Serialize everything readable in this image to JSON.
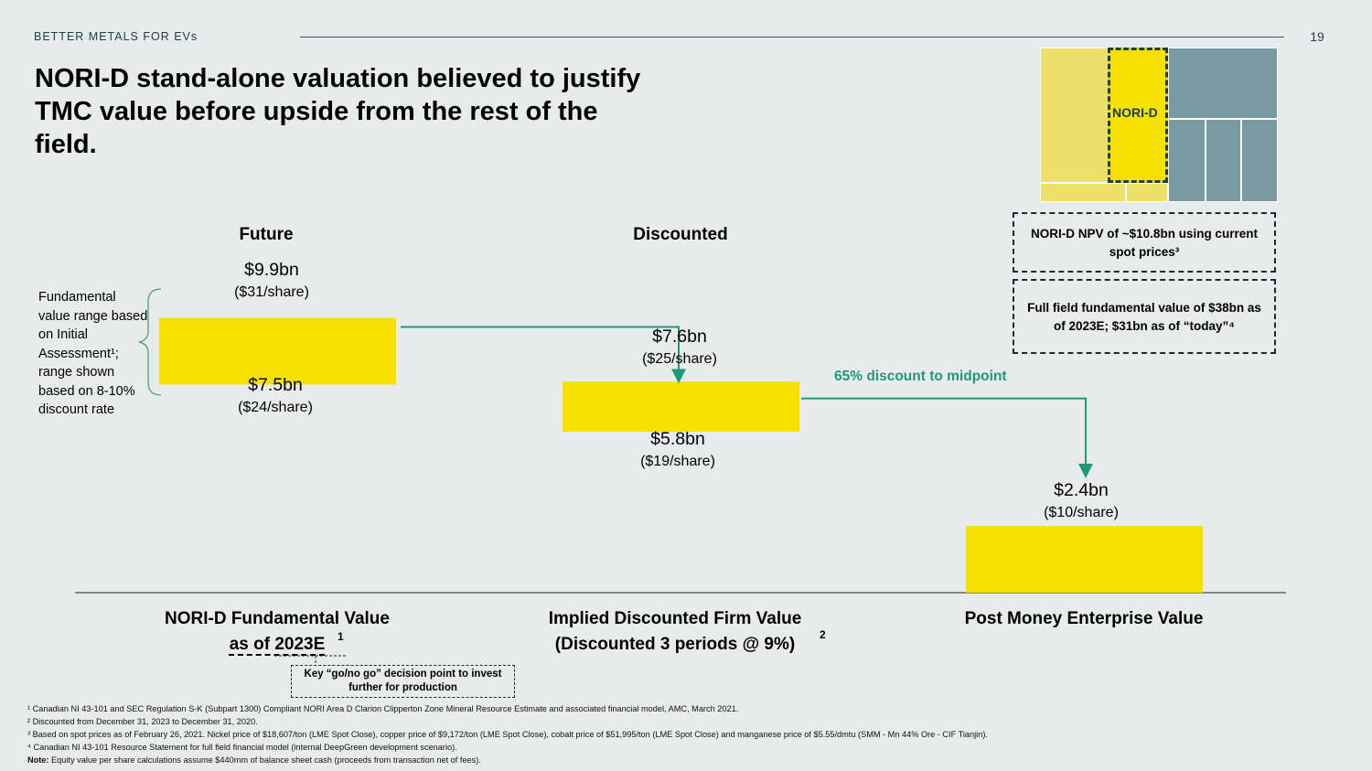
{
  "header": {
    "kicker": "BETTER METALS FOR EVs",
    "page_number": "19",
    "title": "NORI-D stand-alone valuation believed to justify TMC value before upside from the rest of the field."
  },
  "columns": {
    "future": "Future",
    "discounted": "Discounted"
  },
  "side_note": "Fundamental value range based on Initial Assessment¹; range shown based on 8-10% discount rate",
  "discount_label": "65% discount to midpoint",
  "inset": {
    "nori_label": "NORI-D",
    "npv_note": "NORI-D NPV of ~$10.8bn using current spot prices³",
    "field_note": "Full field fundamental value of $38bn as of 2023E; $31bn as of “today”⁴"
  },
  "x_labels": {
    "a_line1": "NORI-D Fundamental Value",
    "a_line2": "as of 2023E",
    "a_sup": "1",
    "b_line1": "Implied Discounted Firm Value",
    "b_line2": "(Discounted 3 periods @ 9%)",
    "b_sup": "2",
    "c_line1": "Post Money Enterprise Value"
  },
  "callout": "Key “go/no go” decision point to invest further for production",
  "footnotes": {
    "f1": "¹ Canadian NI 43-101 and SEC Regulation S-K (Subpart 1300) Compliant NORI Area D Clarion Clipperton Zone Mineral Resource Estimate and associated financial model, AMC, March 2021.",
    "f2": "² Discounted from December 31, 2023 to December 31, 2020.",
    "f3": "³ Based on spot prices as of February 26, 2021. Nickel price of $18,607/ton (LME Spot Close), copper price of $9,172/ton (LME Spot Close), cobalt price of $51,995/ton (LME Spot Close) and manganese price of $5.55/dmtu (SMM - Mn 44% Ore - CIF Tianjin).",
    "f4": "⁴ Canadian NI 43-101 Resource Statement for full field financial model (internal DeepGreen development scenario).",
    "note_label": "Note:",
    "note_text": " Equity value per share calculations assume $440mm of balance sheet cash (proceeds from transaction net of fees)."
  },
  "chart_data": {
    "type": "bar",
    "categories": [
      "NORI-D Fundamental Value as of 2023E",
      "Implied Discounted Firm Value (Discounted 3 periods @ 9%)",
      "Post Money Enterprise Value"
    ],
    "unit": "$bn",
    "ranges": [
      {
        "low": 7.5,
        "high": 9.9,
        "low_label": "$7.5bn",
        "high_label": "$9.9bn",
        "low_per_share": "($24/share)",
        "high_per_share": "($31/share)"
      },
      {
        "low": 5.8,
        "high": 7.6,
        "low_label": "$5.8bn",
        "high_label": "$7.6bn",
        "low_per_share": "($19/share)",
        "high_per_share": "($25/share)"
      },
      {
        "low": 0,
        "high": 2.4,
        "low_label": "",
        "high_label": "$2.4bn",
        "low_per_share": "",
        "high_per_share": "($10/share)"
      }
    ],
    "colors": {
      "bar": "#f5e000",
      "arrow": "#1e9a78",
      "inset_gray": "#7a9aa3",
      "inset_light": "#ece06a"
    }
  }
}
